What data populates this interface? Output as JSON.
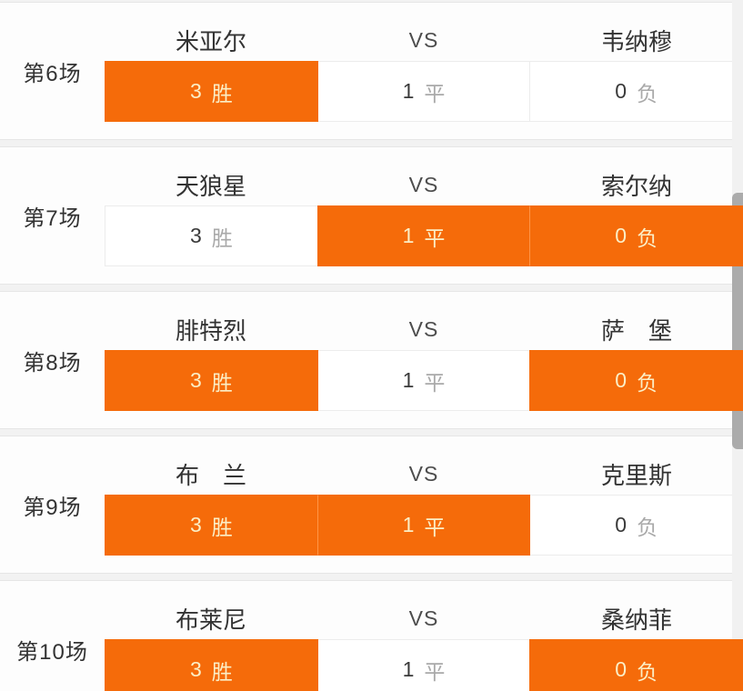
{
  "labels": {
    "vs": "VS"
  },
  "colors": {
    "accent": "#F56B0A",
    "selected_text": "#FBEEC6",
    "unselected_number": "#3A3A3A",
    "unselected_outcome": "#A9A9A9",
    "card_background": "#FDFDFD",
    "page_background": "#F2F2F2"
  },
  "matches": [
    {
      "label": "第6场",
      "home": "米亚尔",
      "away": "韦纳穆",
      "options": [
        {
          "value": "3",
          "outcome": "胜",
          "selected": true
        },
        {
          "value": "1",
          "outcome": "平",
          "selected": false
        },
        {
          "value": "0",
          "outcome": "负",
          "selected": false
        }
      ]
    },
    {
      "label": "第7场",
      "home": "天狼星",
      "away": "索尔纳",
      "options": [
        {
          "value": "3",
          "outcome": "胜",
          "selected": false
        },
        {
          "value": "1",
          "outcome": "平",
          "selected": true
        },
        {
          "value": "0",
          "outcome": "负",
          "selected": true
        }
      ]
    },
    {
      "label": "第8场",
      "home": "腓特烈",
      "away": "萨　堡",
      "options": [
        {
          "value": "3",
          "outcome": "胜",
          "selected": true
        },
        {
          "value": "1",
          "outcome": "平",
          "selected": false
        },
        {
          "value": "0",
          "outcome": "负",
          "selected": true
        }
      ]
    },
    {
      "label": "第9场",
      "home": "布　兰",
      "away": "克里斯",
      "options": [
        {
          "value": "3",
          "outcome": "胜",
          "selected": true
        },
        {
          "value": "1",
          "outcome": "平",
          "selected": true
        },
        {
          "value": "0",
          "outcome": "负",
          "selected": false
        }
      ]
    },
    {
      "label": "第10场",
      "home": "布莱尼",
      "away": "桑纳菲",
      "options": [
        {
          "value": "3",
          "outcome": "胜",
          "selected": true
        },
        {
          "value": "1",
          "outcome": "平",
          "selected": false
        },
        {
          "value": "0",
          "outcome": "负",
          "selected": true
        }
      ]
    }
  ]
}
